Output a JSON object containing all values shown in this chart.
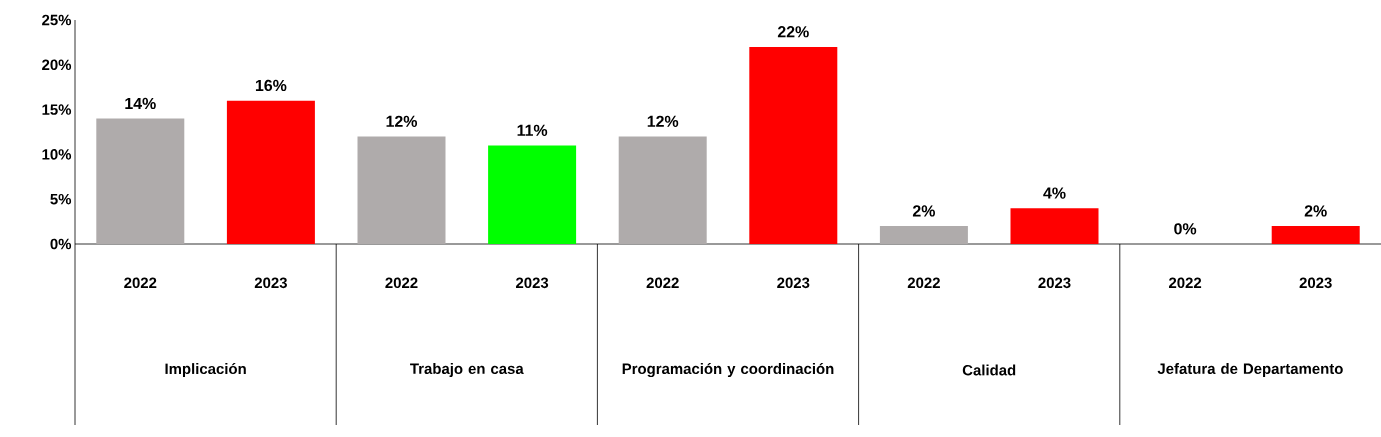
{
  "chart_data": {
    "type": "bar",
    "categories": [
      "2022",
      "2023",
      "2022",
      "2023",
      "2022",
      "2023",
      "2022",
      "2023",
      "2022",
      "2023"
    ],
    "values": [
      14,
      16,
      12,
      11,
      12,
      22,
      2,
      4,
      0,
      2
    ],
    "colors": [
      "#afabab",
      "#ff0000",
      "#afabab",
      "#00ff00",
      "#afabab",
      "#ff0000",
      "#afabab",
      "#ff0000",
      "#afabab",
      "#ff0000"
    ],
    "value_labels": [
      "14%",
      "16%",
      "12%",
      "11%",
      "12%",
      "22%",
      "2%",
      "4%",
      "0%",
      "2%"
    ],
    "ylim": [
      0,
      25
    ],
    "yticks": [
      {
        "value": 0,
        "label": "0%"
      },
      {
        "value": 5,
        "label": "5%"
      },
      {
        "value": 10,
        "label": "10%"
      },
      {
        "value": 15,
        "label": "15%"
      },
      {
        "value": 20,
        "label": "20%"
      },
      {
        "value": 25,
        "label": "25%"
      }
    ],
    "grid": false,
    "annotations": [
      "Implicación",
      "Trabajo en casa",
      "Programación y coordinación",
      "Calidad",
      "Jefatura de Departamento"
    ]
  }
}
